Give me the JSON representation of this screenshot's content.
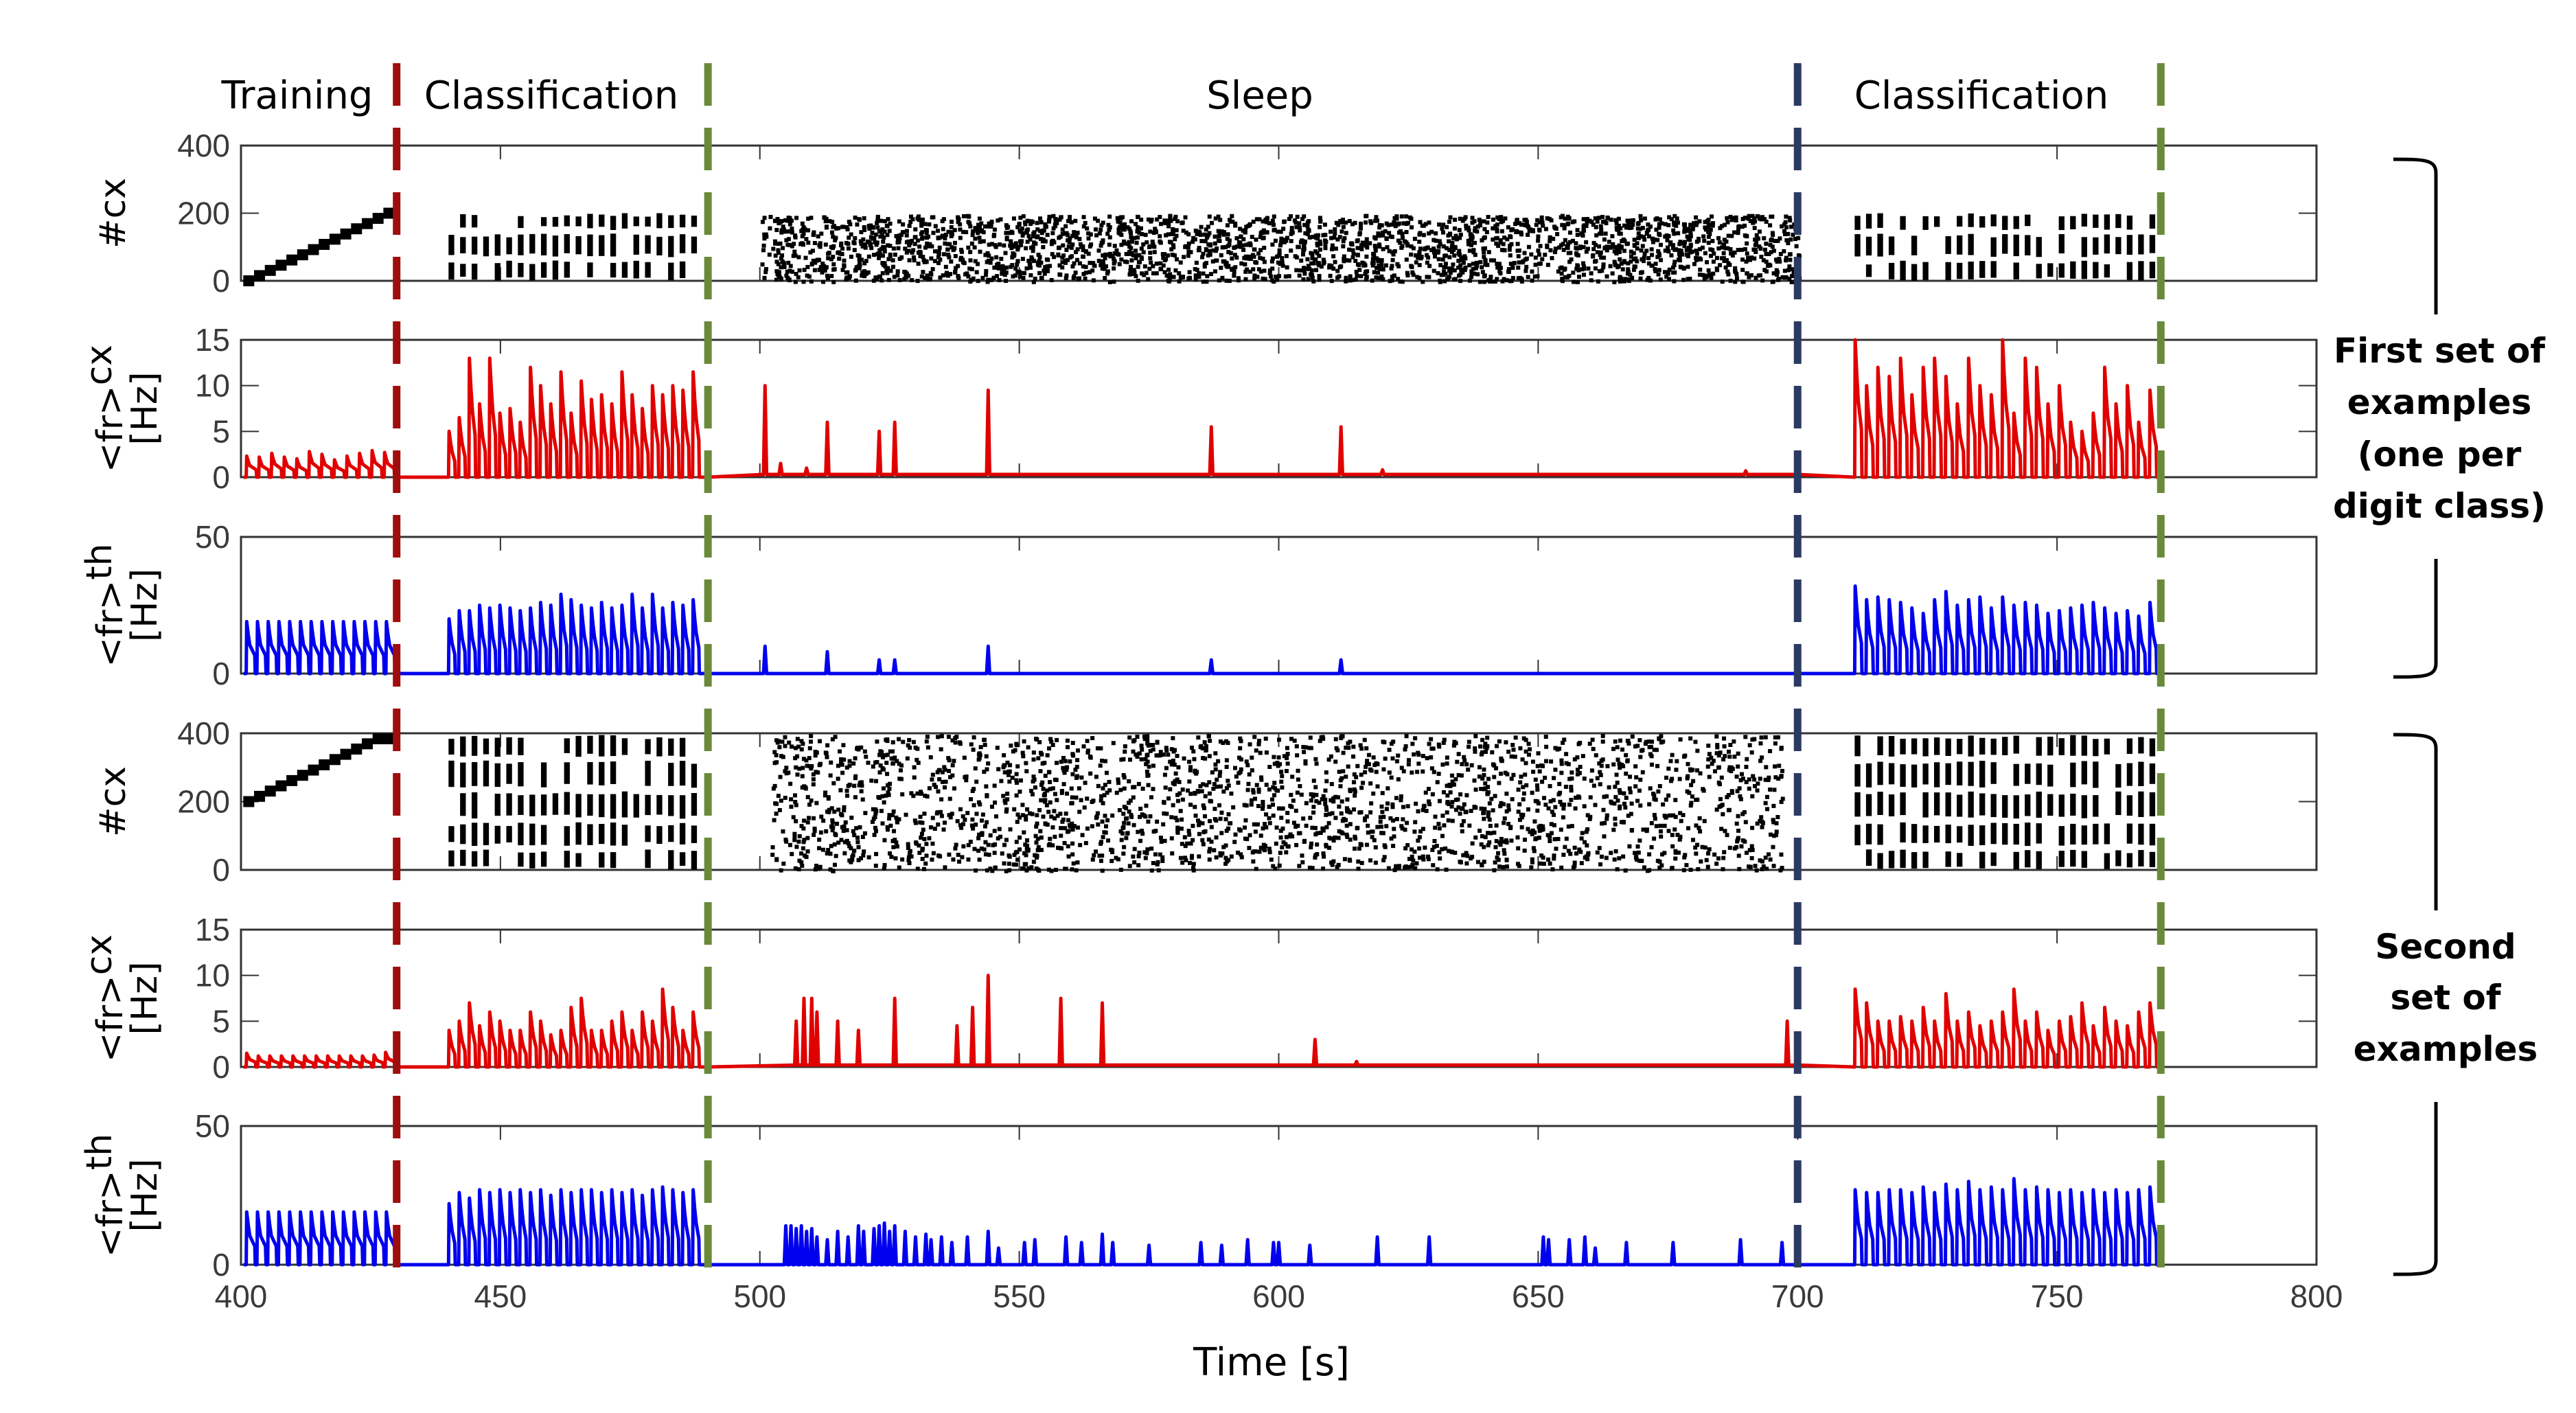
{
  "chart_data": {
    "type": "multi-panel raster and line",
    "xlabel": "Time [s]",
    "xlim": [
      400,
      800
    ],
    "xticks": [
      400,
      450,
      500,
      550,
      600,
      650,
      700,
      750,
      800
    ],
    "phases": [
      {
        "label": "Training",
        "start": 400,
        "end": 430
      },
      {
        "label": "Classification",
        "start": 430,
        "end": 490
      },
      {
        "label": "Sleep",
        "start": 490,
        "end": 700
      },
      {
        "label": "Classification",
        "start": 700,
        "end": 770
      }
    ],
    "boundaries": [
      {
        "t": 430,
        "color": "#a00d0d"
      },
      {
        "t": 490,
        "color": "#6a8a3a"
      },
      {
        "t": 700,
        "color": "#2b3a63"
      },
      {
        "t": 770,
        "color": "#6a8a3a"
      }
    ],
    "groups": [
      {
        "lines": [
          "First set of",
          "examples",
          "(one per",
          "digit class)"
        ]
      },
      {
        "lines": [
          "Second",
          "set of",
          "examples"
        ]
      }
    ],
    "panels": [
      {
        "kind": "raster",
        "ylabel": "#cx",
        "ylabel_sub": "",
        "ylabel2": "",
        "ylim": [
          0,
          400
        ],
        "yticks": [
          0,
          200,
          400
        ],
        "color": "#000000",
        "training": {
          "from": 0,
          "to": 200,
          "steps": 14
        },
        "classification": [
          {
            "start": 440,
            "end": 489,
            "neurons": [
              0,
              200
            ]
          },
          {
            "start": 711,
            "end": 770,
            "neurons": [
              0,
              200
            ]
          }
        ],
        "sleep": {
          "start": 500,
          "end": 700,
          "neurons": [
            0,
            200
          ],
          "density": 2600
        }
      },
      {
        "kind": "rate",
        "ylabel": "<fr>",
        "ylabel_sub": "cx",
        "ylabel2": "[Hz]",
        "ylim": [
          0,
          15
        ],
        "yticks": [
          0,
          5,
          10,
          15
        ],
        "color": "#e00000",
        "training": {
          "start": 401,
          "end": 430,
          "peaks": [
            2.3,
            2.2,
            2.6,
            2.2,
            2.0,
            2.8,
            2.5,
            1.9,
            2.3,
            2.6,
            2.9,
            2.7
          ]
        },
        "classification": [
          {
            "start": 440,
            "end": 489,
            "peaks": [
              5,
              6.5,
              13,
              8,
              13,
              7,
              7.5,
              6,
              12,
              10,
              8,
              11.5,
              7,
              10.5,
              8.5,
              9,
              8,
              11.5,
              9,
              7.5,
              10,
              9,
              10,
              9.5,
              11.5
            ]
          },
          {
            "start": 711,
            "end": 770,
            "peaks": [
              15,
              10,
              12,
              11,
              13,
              9,
              12,
              13,
              11,
              8,
              13,
              10,
              9,
              15,
              7,
              13,
              12,
              8,
              10,
              6,
              5,
              7,
              12,
              8,
              10,
              6,
              9.5
            ]
          }
        ],
        "sleep_events": [
          [
            501,
            10
          ],
          [
            504,
            1.5
          ],
          [
            509,
            1
          ],
          [
            513,
            6
          ],
          [
            523,
            5
          ],
          [
            526,
            6
          ],
          [
            544,
            9.5
          ],
          [
            587,
            5.5
          ],
          [
            612,
            5.5
          ],
          [
            620,
            0.8
          ],
          [
            690,
            0.7
          ]
        ],
        "sleep_baseline": 0.3
      },
      {
        "kind": "rate",
        "ylabel": "<fr>",
        "ylabel_sub": "th",
        "ylabel2": "[Hz]",
        "ylim": [
          0,
          50
        ],
        "yticks": [
          0,
          50
        ],
        "color": "#0000ee",
        "training": {
          "start": 401,
          "end": 430,
          "peaks": [
            19,
            19,
            19,
            19,
            19,
            19,
            19,
            19,
            19,
            19,
            19,
            19,
            19,
            19
          ]
        },
        "classification": [
          {
            "start": 440,
            "end": 489,
            "peaks": [
              20,
              23,
              23,
              25,
              24,
              25,
              24,
              23,
              24,
              26,
              25,
              29,
              27,
              25,
              24,
              26,
              24,
              25,
              29,
              24,
              29,
              24,
              26,
              25,
              27
            ]
          },
          {
            "start": 711,
            "end": 770,
            "peaks": [
              32,
              27,
              28,
              27,
              26,
              24,
              22,
              27,
              30,
              25,
              27,
              28,
              24,
              28,
              25,
              26,
              25,
              22,
              23,
              24,
              25,
              26,
              24,
              22,
              23,
              21,
              26
            ]
          }
        ],
        "sleep_events": [
          [
            501,
            10
          ],
          [
            513,
            8
          ],
          [
            523,
            5
          ],
          [
            526,
            5
          ],
          [
            544,
            10
          ],
          [
            587,
            5
          ],
          [
            612,
            5
          ]
        ],
        "sleep_baseline": 0
      },
      {
        "kind": "raster",
        "ylabel": "#cx",
        "ylabel_sub": "",
        "ylabel2": "",
        "ylim": [
          0,
          400
        ],
        "yticks": [
          0,
          200,
          400
        ],
        "color": "#000000",
        "training": {
          "from": 200,
          "to": 400,
          "steps": 14
        },
        "classification": [
          {
            "start": 440,
            "end": 489,
            "neurons": [
              0,
              400
            ]
          },
          {
            "start": 711,
            "end": 770,
            "neurons": [
              0,
              400
            ]
          }
        ],
        "sleep": {
          "start": 502,
          "end": 697,
          "neurons": [
            0,
            400
          ],
          "density": 2400
        }
      },
      {
        "kind": "rate",
        "ylabel": "<fr>",
        "ylabel_sub": "cx",
        "ylabel2": "[Hz]",
        "ylim": [
          0,
          15
        ],
        "yticks": [
          0,
          5,
          10,
          15
        ],
        "color": "#e00000",
        "training": {
          "start": 401,
          "end": 430,
          "peaks": [
            1.5,
            1.2,
            1.2,
            1.2,
            1.2,
            1.2,
            1.2,
            1.2,
            1.2,
            1.2,
            1.2,
            1.3,
            1.6
          ]
        },
        "classification": [
          {
            "start": 440,
            "end": 489,
            "peaks": [
              4,
              5,
              7,
              4.5,
              6,
              5,
              4,
              4,
              6,
              5,
              3.5,
              4,
              6.5,
              7.5,
              4,
              4,
              5,
              6,
              4,
              6,
              5,
              8.5,
              6.5,
              4,
              6
            ]
          },
          {
            "start": 711,
            "end": 770,
            "peaks": [
              8.5,
              7,
              5,
              5,
              5.5,
              5,
              6.5,
              5,
              8,
              5,
              6,
              4.5,
              5,
              6,
              8.5,
              5,
              6,
              4,
              5,
              5.5,
              7,
              4.5,
              6.5,
              5,
              4.5,
              6,
              7
            ]
          }
        ],
        "sleep_events": [
          [
            507,
            5
          ],
          [
            508.5,
            7.5
          ],
          [
            510,
            7.5
          ],
          [
            511,
            6
          ],
          [
            515,
            5
          ],
          [
            519,
            4
          ],
          [
            526,
            7.5
          ],
          [
            538,
            4.5
          ],
          [
            541,
            6.5
          ],
          [
            544,
            10
          ],
          [
            558,
            7.5
          ],
          [
            566,
            7
          ],
          [
            607,
            3
          ],
          [
            615,
            0.6
          ],
          [
            698,
            5
          ]
        ],
        "sleep_baseline": 0.2
      },
      {
        "kind": "rate",
        "ylabel": "<fr>",
        "ylabel_sub": "th",
        "ylabel2": "[Hz]",
        "ylim": [
          0,
          50
        ],
        "yticks": [
          0,
          50
        ],
        "color": "#0000ee",
        "training": {
          "start": 401,
          "end": 430,
          "peaks": [
            19,
            19,
            19,
            19,
            19,
            19,
            19,
            19,
            19,
            19,
            19,
            19,
            19,
            19
          ]
        },
        "classification": [
          {
            "start": 440,
            "end": 489,
            "peaks": [
              22,
              26,
              24,
              27,
              26,
              27,
              26,
              27,
              26,
              27,
              25,
              27,
              26,
              27,
              27,
              26,
              27,
              26,
              27,
              25,
              27,
              28,
              27,
              26,
              27
            ]
          },
          {
            "start": 711,
            "end": 770,
            "peaks": [
              27,
              26,
              26,
              27,
              27,
              26,
              28,
              26,
              29,
              27,
              30,
              27,
              28,
              27,
              31,
              27,
              28,
              27,
              26,
              27,
              26,
              27,
              26,
              27,
              26,
              27,
              28
            ]
          }
        ],
        "sleep_events": [
          [
            505,
            14
          ],
          [
            506,
            14
          ],
          [
            507,
            13
          ],
          [
            508,
            14
          ],
          [
            509,
            12
          ],
          [
            510,
            13
          ],
          [
            511,
            10
          ],
          [
            513,
            9
          ],
          [
            515,
            12
          ],
          [
            517,
            10
          ],
          [
            519,
            14
          ],
          [
            520,
            12
          ],
          [
            522,
            13
          ],
          [
            523,
            14
          ],
          [
            524,
            15
          ],
          [
            525,
            12
          ],
          [
            526,
            14
          ],
          [
            528,
            12
          ],
          [
            530,
            10
          ],
          [
            532,
            11
          ],
          [
            533,
            9
          ],
          [
            535,
            10
          ],
          [
            537,
            8
          ],
          [
            540,
            10
          ],
          [
            544,
            12
          ],
          [
            546,
            6
          ],
          [
            551,
            8
          ],
          [
            553,
            9
          ],
          [
            559,
            10
          ],
          [
            562,
            8
          ],
          [
            566,
            11
          ],
          [
            568,
            8
          ],
          [
            575,
            7
          ],
          [
            585,
            8
          ],
          [
            589,
            7
          ],
          [
            594,
            9
          ],
          [
            599,
            8
          ],
          [
            600,
            8
          ],
          [
            606,
            7
          ],
          [
            619,
            10
          ],
          [
            629,
            10
          ],
          [
            651,
            10
          ],
          [
            652,
            9
          ],
          [
            656,
            9
          ],
          [
            659,
            10
          ],
          [
            661,
            6
          ],
          [
            667,
            8
          ],
          [
            676,
            8
          ],
          [
            689,
            9
          ],
          [
            697,
            8
          ]
        ],
        "sleep_baseline": 0
      }
    ]
  }
}
